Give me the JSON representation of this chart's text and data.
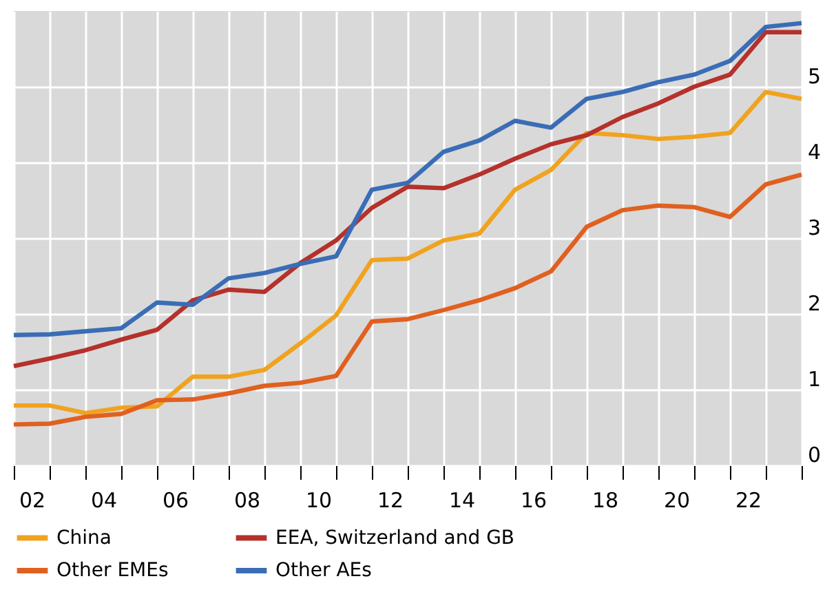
{
  "chart_data": {
    "type": "line",
    "x": [
      1.5,
      2.5,
      3.5,
      4.5,
      5.5,
      6.5,
      7.5,
      8.5,
      9.5,
      10.5,
      11.5,
      12.5,
      13.5,
      14.5,
      15.5,
      16.5,
      17.5,
      18.5,
      19.5,
      20.5,
      21.5,
      22.5,
      23.5
    ],
    "series": [
      {
        "name": "China",
        "color": "#f0a31f",
        "values": [
          0.79,
          0.79,
          0.69,
          0.76,
          0.78,
          1.17,
          1.17,
          1.26,
          1.61,
          1.98,
          2.71,
          2.73,
          2.97,
          3.06,
          3.64,
          3.9,
          4.39,
          4.36,
          4.31,
          4.34,
          4.39,
          4.93,
          4.84
        ]
      },
      {
        "name": "EEA, Switzerland and GB",
        "color": "#b5312b",
        "values": [
          1.31,
          1.41,
          1.52,
          1.66,
          1.79,
          2.18,
          2.32,
          2.29,
          2.67,
          2.97,
          3.4,
          3.68,
          3.66,
          3.84,
          4.05,
          4.24,
          4.36,
          4.6,
          4.78,
          5.0,
          5.16,
          5.72,
          5.72
        ]
      },
      {
        "name": "Other EMEs",
        "color": "#e0601f",
        "values": [
          0.54,
          0.55,
          0.64,
          0.68,
          0.86,
          0.87,
          0.95,
          1.05,
          1.09,
          1.18,
          1.9,
          1.93,
          2.05,
          2.18,
          2.34,
          2.56,
          3.15,
          3.37,
          3.43,
          3.41,
          3.28,
          3.71,
          3.84
        ]
      },
      {
        "name": "Other AEs",
        "color": "#3a6db5",
        "values": [
          1.72,
          1.73,
          1.77,
          1.81,
          2.15,
          2.12,
          2.47,
          2.54,
          2.66,
          2.76,
          3.64,
          3.73,
          4.14,
          4.29,
          4.55,
          4.46,
          4.84,
          4.93,
          5.06,
          5.16,
          5.34,
          5.79,
          5.84
        ]
      }
    ],
    "xlim": [
      1.5,
      23.5
    ],
    "xticks": [
      {
        "value": 1.5,
        "label": null
      },
      {
        "value": 2.5,
        "label": null
      },
      {
        "value": 2,
        "label": "02"
      },
      {
        "value": 3.5,
        "label": null
      },
      {
        "value": 4.5,
        "label": null
      },
      {
        "value": 4,
        "label": "04"
      },
      {
        "value": 5.5,
        "label": null
      },
      {
        "value": 6.5,
        "label": null
      },
      {
        "value": 6,
        "label": "06"
      },
      {
        "value": 7.5,
        "label": null
      },
      {
        "value": 8.5,
        "label": null
      },
      {
        "value": 8,
        "label": "08"
      },
      {
        "value": 9.5,
        "label": null
      },
      {
        "value": 10.5,
        "label": null
      },
      {
        "value": 10,
        "label": "10"
      },
      {
        "value": 11.5,
        "label": null
      },
      {
        "value": 12.5,
        "label": null
      },
      {
        "value": 12,
        "label": "12"
      },
      {
        "value": 13.5,
        "label": null
      },
      {
        "value": 14.5,
        "label": null
      },
      {
        "value": 14,
        "label": "14"
      },
      {
        "value": 15.5,
        "label": null
      },
      {
        "value": 16.5,
        "label": null
      },
      {
        "value": 16,
        "label": "16"
      },
      {
        "value": 17.5,
        "label": null
      },
      {
        "value": 18.5,
        "label": null
      },
      {
        "value": 18,
        "label": "18"
      },
      {
        "value": 19.5,
        "label": null
      },
      {
        "value": 20.5,
        "label": null
      },
      {
        "value": 20,
        "label": "20"
      },
      {
        "value": 21.5,
        "label": null
      },
      {
        "value": 22.5,
        "label": null
      },
      {
        "value": 22,
        "label": "22"
      },
      {
        "value": 23.5,
        "label": null
      }
    ],
    "ylim": [
      0,
      6
    ],
    "yticks": [
      0,
      1,
      2,
      3,
      4,
      5
    ],
    "grid": true,
    "legend": "bottom",
    "marker": "none",
    "line_style": "solid"
  }
}
